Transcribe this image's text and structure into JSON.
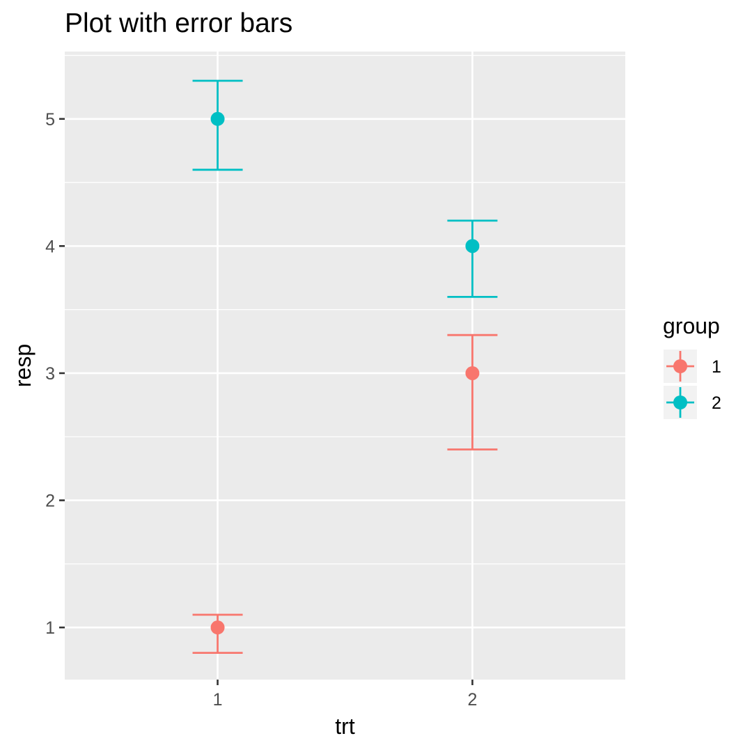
{
  "chart_data": {
    "type": "scatter",
    "title": "Plot with error bars",
    "xlabel": "trt",
    "ylabel": "resp",
    "x_categories": [
      "1",
      "2"
    ],
    "y_ticks": [
      1,
      2,
      3,
      4,
      5
    ],
    "ylim": [
      0.59,
      5.53
    ],
    "grid": true,
    "legend": {
      "title": "group",
      "position": "right"
    },
    "series": [
      {
        "name": "1",
        "color": "#F8766D",
        "points": [
          {
            "x": "1",
            "y": 1,
            "lower": 0.8,
            "upper": 1.1
          },
          {
            "x": "2",
            "y": 3,
            "lower": 2.4,
            "upper": 3.3
          }
        ]
      },
      {
        "name": "2",
        "color": "#00BFC4",
        "points": [
          {
            "x": "1",
            "y": 5,
            "lower": 4.6,
            "upper": 5.3
          },
          {
            "x": "2",
            "y": 4,
            "lower": 3.6,
            "upper": 4.2
          }
        ]
      }
    ],
    "panel_color": "#EBEBEB",
    "grid_color": "#FFFFFF"
  }
}
